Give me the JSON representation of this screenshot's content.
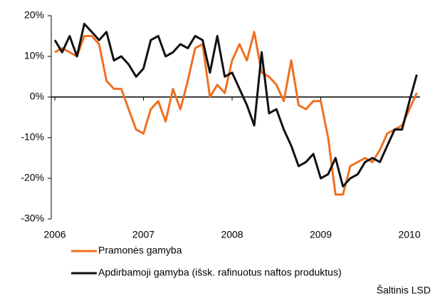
{
  "chart_data": {
    "type": "line",
    "x": [
      2006,
      2006.083,
      2006.167,
      2006.25,
      2006.333,
      2006.417,
      2006.5,
      2006.583,
      2006.667,
      2006.75,
      2006.833,
      2006.917,
      2007,
      2007.083,
      2007.167,
      2007.25,
      2007.333,
      2007.417,
      2007.5,
      2007.583,
      2007.667,
      2007.75,
      2007.833,
      2007.917,
      2008,
      2008.083,
      2008.167,
      2008.25,
      2008.333,
      2008.417,
      2008.5,
      2008.583,
      2008.667,
      2008.75,
      2008.833,
      2008.917,
      2009,
      2009.083,
      2009.167,
      2009.25,
      2009.333,
      2009.417,
      2009.5,
      2009.583,
      2009.667,
      2009.75,
      2009.833,
      2009.917,
      2010,
      2010.083
    ],
    "series": [
      {
        "name": "Pramonės gamyba",
        "color": "#f07020",
        "values": [
          11,
          12,
          11,
          10,
          15,
          15,
          13,
          4,
          2,
          2,
          -3,
          -8,
          -9,
          -3,
          -1,
          -6,
          2,
          -3,
          4,
          12,
          13,
          0,
          3,
          1,
          9,
          13,
          9,
          16,
          6,
          5,
          3,
          -1,
          9,
          -2,
          -3,
          -1,
          -1,
          -10,
          -24,
          -24,
          -17,
          -16,
          -15,
          -16,
          -13,
          -9,
          -8,
          -7,
          -3,
          1
        ]
      },
      {
        "name": "Apdirbamoji gamyba (išsk. rafinuotus naftos produktus)",
        "color": "#111111",
        "values": [
          14,
          11,
          15,
          10,
          18,
          16,
          14,
          16,
          9,
          10,
          8,
          5,
          7,
          14,
          15,
          10,
          11,
          13,
          12,
          15,
          14,
          6,
          15,
          5,
          6,
          2,
          -2,
          -7,
          11,
          -4,
          -3,
          -8,
          -12,
          -17,
          -16,
          -14,
          -20,
          -19,
          -15,
          -22,
          -20,
          -19,
          -16,
          -15,
          -16,
          -12,
          -8,
          -8,
          -1,
          5.5
        ]
      }
    ],
    "xlim": [
      2005.96,
      2010.12
    ],
    "xticks": [
      2006,
      2007,
      2008,
      2009,
      2010
    ],
    "ylim": [
      -30,
      20
    ],
    "yticks": [
      {
        "value": -30,
        "label": "-30%"
      },
      {
        "value": -20,
        "label": "-20%"
      },
      {
        "value": -10,
        "label": "-10%"
      },
      {
        "value": 0,
        "label": "0%"
      },
      {
        "value": 10,
        "label": "10%"
      },
      {
        "value": 20,
        "label": "20%"
      }
    ],
    "grid": false,
    "source": "Šaltinis LSD"
  }
}
